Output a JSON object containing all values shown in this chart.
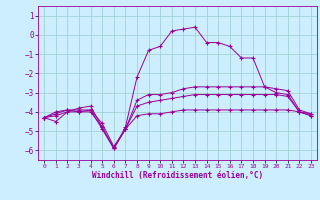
{
  "xlabel": "Windchill (Refroidissement éolien,°C)",
  "bg_color": "#cceeff",
  "grid_color": "#99cccc",
  "line_color": "#990099",
  "marker": "+",
  "xlim": [
    -0.5,
    23.5
  ],
  "ylim": [
    -6.5,
    1.5
  ],
  "xticks": [
    0,
    1,
    2,
    3,
    4,
    5,
    6,
    7,
    8,
    9,
    10,
    11,
    12,
    13,
    14,
    15,
    16,
    17,
    18,
    19,
    20,
    21,
    22,
    23
  ],
  "yticks": [
    1,
    0,
    -1,
    -2,
    -3,
    -4,
    -5,
    -6
  ],
  "series": [
    [
      -4.3,
      -4.5,
      -4.0,
      -3.8,
      -3.7,
      -4.8,
      -5.9,
      -4.8,
      -2.2,
      -0.8,
      -0.6,
      0.2,
      0.3,
      0.4,
      -0.4,
      -0.4,
      -0.6,
      -1.2,
      -1.2,
      -2.7,
      -3.0,
      -3.1,
      -4.0,
      -4.1
    ],
    [
      -4.3,
      -4.0,
      -3.9,
      -4.0,
      -3.9,
      -4.9,
      -5.9,
      -4.9,
      -3.4,
      -3.1,
      -3.1,
      -3.0,
      -2.8,
      -2.7,
      -2.7,
      -2.7,
      -2.7,
      -2.7,
      -2.7,
      -2.7,
      -2.8,
      -2.9,
      -3.9,
      -4.1
    ],
    [
      -4.3,
      -4.1,
      -3.9,
      -3.9,
      -3.9,
      -4.6,
      -5.8,
      -4.9,
      -3.7,
      -3.5,
      -3.4,
      -3.3,
      -3.2,
      -3.1,
      -3.1,
      -3.1,
      -3.1,
      -3.1,
      -3.1,
      -3.1,
      -3.1,
      -3.2,
      -4.0,
      -4.2
    ],
    [
      -4.3,
      -4.2,
      -4.0,
      -4.0,
      -4.0,
      -4.8,
      -5.9,
      -4.9,
      -4.2,
      -4.1,
      -4.1,
      -4.0,
      -3.9,
      -3.9,
      -3.9,
      -3.9,
      -3.9,
      -3.9,
      -3.9,
      -3.9,
      -3.9,
      -3.9,
      -4.0,
      -4.2
    ]
  ]
}
